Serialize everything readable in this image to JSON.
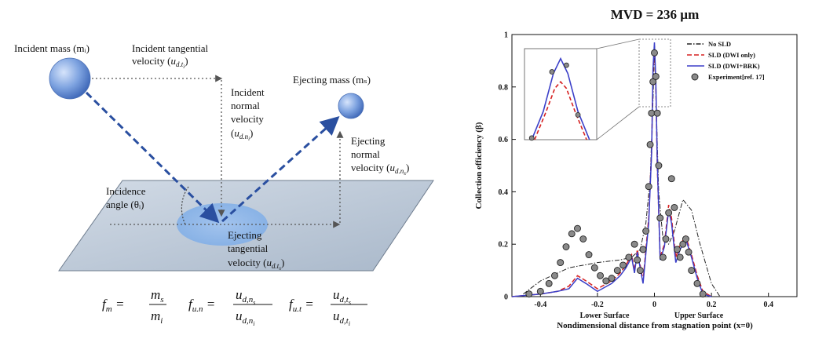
{
  "diagram": {
    "incident_mass": "Incident mass (mᵢ)",
    "incident_tangential_1": "Incident tangential",
    "incident_tangential_2": "velocity (",
    "incident_normal_1": "Incident",
    "incident_normal_2": "normal",
    "incident_normal_3": "velocity",
    "ejecting_mass": "Ejecting mass (mₛ)",
    "ejecting_normal_1": "Ejecting",
    "ejecting_normal_2": "normal",
    "ejecting_normal_3": "velocity (",
    "incidence_angle_1": "Incidence",
    "incidence_angle_2": "angle (θᵢ)",
    "ejecting_tangential_1": "Ejecting",
    "ejecting_tangential_2": "tangential",
    "ejecting_tangential_3": "velocity (",
    "u_d": "u",
    "sub_t_i": "d.t",
    "sub_n_i": "d.n",
    "sub_n_s": "d.n",
    "sub_t_s": "d.t",
    "f_m": "f",
    "f_m_sub": "m",
    "f_un_sub": "u.n",
    "f_ut_sub": "u.t",
    "m_s": "m",
    "m_i": "m",
    "colors": {
      "sphere": "#6f97d8",
      "arrow": "#2a4fa0",
      "plane": "#b9c6d6"
    }
  },
  "chart_data": {
    "type": "line",
    "title": "MVD = 236 µm",
    "xlabel": "Nondimensional distance from stagnation point (x=0)",
    "ylabel": "Collection efficiency (β)",
    "xlim": [
      -0.5,
      0.5
    ],
    "ylim": [
      0,
      1
    ],
    "xticks": [
      "-0.4",
      "-0.2",
      "0",
      "0.2",
      "0.4"
    ],
    "xtick_values": [
      -0.4,
      -0.2,
      0,
      0.2,
      0.4
    ],
    "yticks": [
      "0",
      "0.2",
      "0.4",
      "0.6",
      "0.8",
      "1"
    ],
    "ytick_values": [
      0,
      0.2,
      0.4,
      0.6,
      0.8,
      1
    ],
    "surface_labels": {
      "lower": "Lower Surface",
      "upper": "Upper Surface"
    },
    "legend_position": "top-right",
    "series": [
      {
        "name": "No SLD",
        "color": "#222222",
        "style": "dashdot",
        "x": [
          -0.46,
          -0.4,
          -0.3,
          -0.2,
          -0.12,
          -0.08,
          -0.05,
          -0.03,
          -0.015,
          -0.005,
          0,
          0.005,
          0.015,
          0.03,
          0.05,
          0.07,
          0.1,
          0.13,
          0.16,
          0.2,
          0.23
        ],
        "y": [
          0.01,
          0.06,
          0.11,
          0.13,
          0.14,
          0.15,
          0.18,
          0.28,
          0.45,
          0.75,
          0.95,
          0.78,
          0.4,
          0.22,
          0.2,
          0.25,
          0.37,
          0.33,
          0.2,
          0.05,
          0.0
        ]
      },
      {
        "name": "SLD (DWI only)",
        "color": "#d62020",
        "style": "dashed",
        "x": [
          -0.5,
          -0.4,
          -0.34,
          -0.3,
          -0.27,
          -0.24,
          -0.2,
          -0.15,
          -0.12,
          -0.1,
          -0.08,
          -0.07,
          -0.06,
          -0.04,
          -0.02,
          -0.01,
          -0.005,
          0,
          0.005,
          0.01,
          0.02,
          0.035,
          0.05,
          0.06,
          0.075,
          0.09,
          0.11,
          0.13,
          0.15,
          0.17,
          0.2
        ],
        "y": [
          0.0,
          0.01,
          0.02,
          0.04,
          0.08,
          0.06,
          0.03,
          0.06,
          0.09,
          0.12,
          0.16,
          0.1,
          0.18,
          0.06,
          0.3,
          0.55,
          0.85,
          0.96,
          0.8,
          0.5,
          0.15,
          0.2,
          0.35,
          0.3,
          0.15,
          0.2,
          0.23,
          0.16,
          0.08,
          0.02,
          0.0
        ]
      },
      {
        "name": "SLD (DWI+BRK)",
        "color": "#3b3fc8",
        "style": "solid",
        "x": [
          -0.5,
          -0.4,
          -0.34,
          -0.3,
          -0.27,
          -0.24,
          -0.2,
          -0.15,
          -0.12,
          -0.1,
          -0.08,
          -0.07,
          -0.06,
          -0.04,
          -0.02,
          -0.01,
          -0.005,
          0,
          0.005,
          0.01,
          0.02,
          0.035,
          0.05,
          0.06,
          0.075,
          0.09,
          0.11,
          0.13,
          0.15,
          0.17,
          0.2
        ],
        "y": [
          0.0,
          0.01,
          0.02,
          0.03,
          0.07,
          0.05,
          0.02,
          0.05,
          0.08,
          0.11,
          0.15,
          0.09,
          0.17,
          0.05,
          0.28,
          0.55,
          0.87,
          0.97,
          0.82,
          0.52,
          0.14,
          0.19,
          0.33,
          0.28,
          0.13,
          0.18,
          0.22,
          0.15,
          0.07,
          0.01,
          0.0
        ]
      },
      {
        "name": "Experiment[ref. 17]",
        "color": "#777777",
        "style": "markers",
        "x": [
          -0.44,
          -0.4,
          -0.37,
          -0.35,
          -0.33,
          -0.31,
          -0.29,
          -0.27,
          -0.25,
          -0.23,
          -0.21,
          -0.19,
          -0.17,
          -0.15,
          -0.13,
          -0.11,
          -0.09,
          -0.07,
          -0.06,
          -0.05,
          -0.04,
          -0.03,
          -0.02,
          -0.015,
          -0.01,
          -0.005,
          0,
          0.005,
          0.01,
          0.015,
          0.02,
          0.03,
          0.04,
          0.05,
          0.06,
          0.07,
          0.08,
          0.09,
          0.1,
          0.11,
          0.12,
          0.13,
          0.15,
          0.17
        ],
        "y": [
          0.01,
          0.02,
          0.05,
          0.08,
          0.13,
          0.19,
          0.24,
          0.26,
          0.22,
          0.16,
          0.11,
          0.08,
          0.06,
          0.07,
          0.1,
          0.12,
          0.15,
          0.2,
          0.14,
          0.1,
          0.18,
          0.25,
          0.42,
          0.58,
          0.7,
          0.82,
          0.93,
          0.84,
          0.7,
          0.5,
          0.3,
          0.15,
          0.22,
          0.32,
          0.45,
          0.34,
          0.18,
          0.15,
          0.2,
          0.22,
          0.17,
          0.1,
          0.05,
          0.01
        ]
      }
    ]
  }
}
